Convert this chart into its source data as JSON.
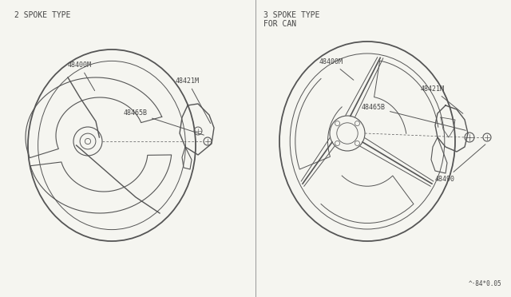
{
  "background_color": "#f5f5f0",
  "line_color": "#555555",
  "text_color": "#444444",
  "watermark": "^·84*0.05",
  "left_title": "2 SPOKE TYPE",
  "right_title_line1": "3 SPOKE TYPE",
  "right_title_line2": "FOR CAN",
  "font_size_title": 7.0,
  "font_size_label": 6.0
}
